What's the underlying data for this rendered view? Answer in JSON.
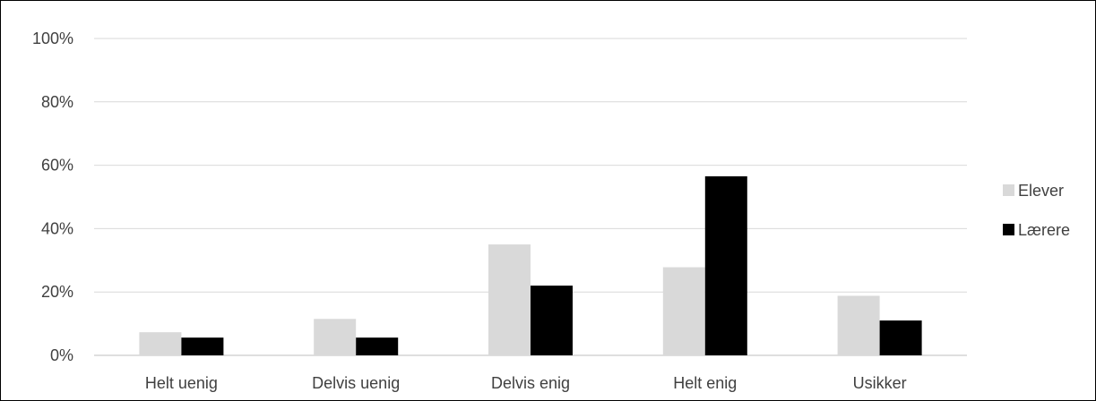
{
  "chart_data": {
    "type": "bar",
    "title": "",
    "xlabel": "",
    "ylabel": "",
    "ylim": [
      0,
      100
    ],
    "y_ticks": [
      0,
      20,
      40,
      60,
      80,
      100
    ],
    "y_tick_labels": [
      "0%",
      "20%",
      "40%",
      "60%",
      "80%",
      "100%"
    ],
    "categories": [
      "Helt uenig",
      "Delvis uenig",
      "Delvis enig",
      "Helt enig",
      "Usikker"
    ],
    "series": [
      {
        "name": "Elever",
        "values": [
          7.3,
          11.5,
          35.0,
          27.8,
          18.8
        ],
        "color": "#d9d9d9"
      },
      {
        "name": "Lærere",
        "values": [
          5.6,
          5.6,
          22.0,
          56.5,
          11.0
        ],
        "color": "#000000"
      }
    ],
    "grid": true,
    "legend_position": "right"
  }
}
